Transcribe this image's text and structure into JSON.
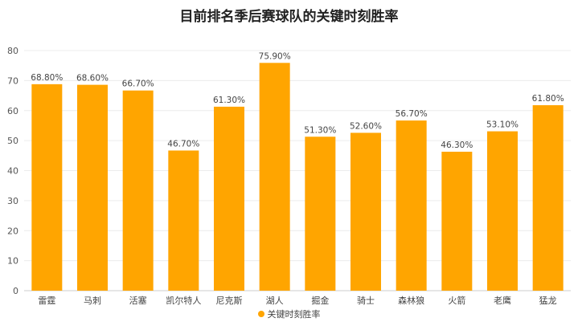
{
  "chart_data": {
    "type": "bar",
    "title": "目前排名季后赛球队的关键时刻胜率",
    "categories": [
      "雷霆",
      "马刺",
      "活塞",
      "凯尔特人",
      "尼克斯",
      "湖人",
      "掘金",
      "骑士",
      "森林狼",
      "火箭",
      "老鹰",
      "猛龙"
    ],
    "series": [
      {
        "name": "关键时刻胜率",
        "values": [
          68.8,
          68.6,
          66.7,
          46.7,
          61.3,
          75.9,
          51.3,
          52.6,
          56.7,
          46.3,
          53.1,
          61.8
        ],
        "data_labels": [
          "68.80%",
          "68.60%",
          "66.70%",
          "46.70%",
          "61.30%",
          "75.90%",
          "51.30%",
          "52.60%",
          "56.70%",
          "46.30%",
          "53.10%",
          "61.80%"
        ]
      }
    ],
    "ylim": [
      0,
      80
    ],
    "yticks": [
      "0",
      "10",
      "20",
      "30",
      "40",
      "50",
      "60",
      "70",
      "80"
    ],
    "grid": true,
    "legend_position": "bottom",
    "bar_color": "#FFA500"
  }
}
